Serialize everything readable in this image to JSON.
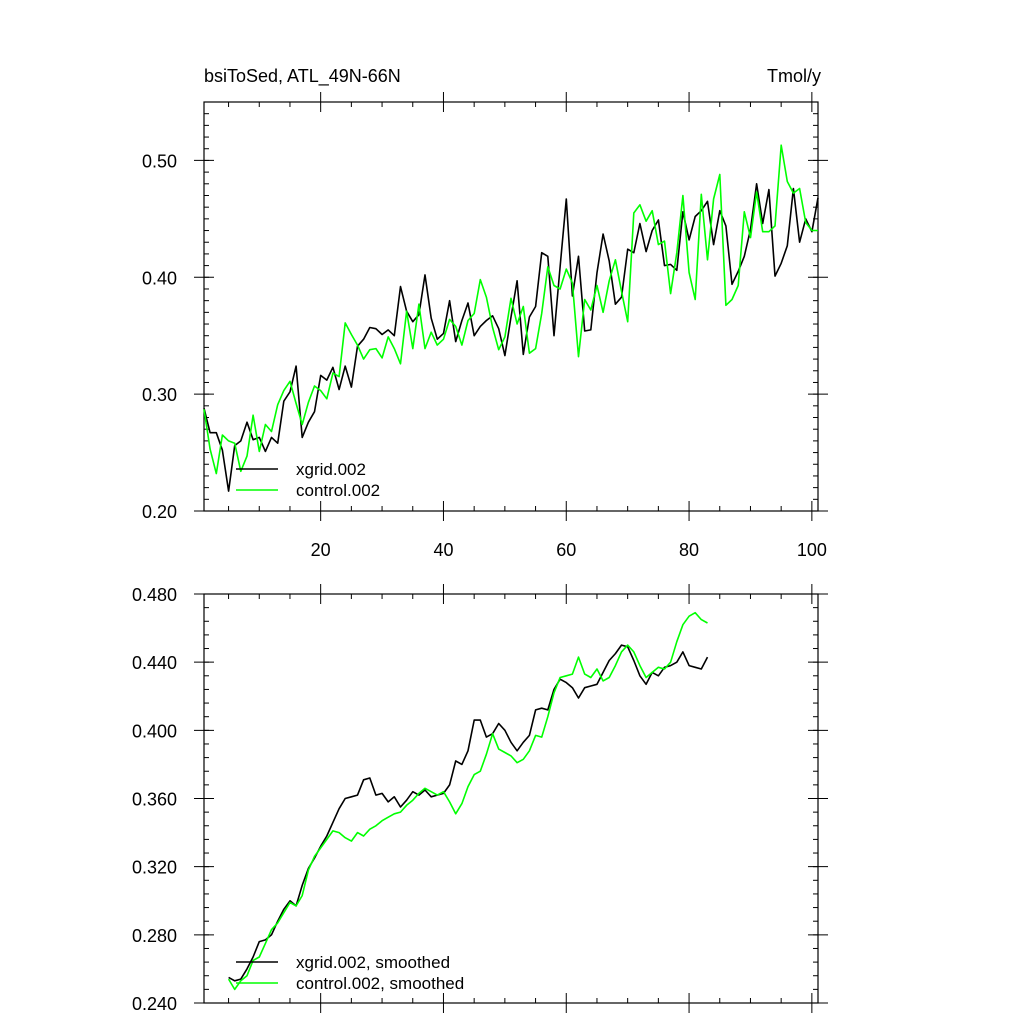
{
  "chart_data": [
    {
      "type": "line",
      "title_left": "bsiToSed, ATL_49N-66N",
      "title_right": "Tmol/y",
      "xlim": [
        1,
        101
      ],
      "ylim": [
        0.2,
        0.55
      ],
      "x_ticks": [
        20,
        40,
        60,
        80,
        100
      ],
      "y_ticks": [
        0.2,
        0.3,
        0.4,
        0.5
      ],
      "y_tick_labels": [
        "0.20",
        "0.30",
        "0.40",
        "0.50"
      ],
      "x_tick_labels": [
        "20",
        "40",
        "60",
        "80",
        "100"
      ],
      "legend": [
        "xgrid.002",
        "control.002"
      ],
      "series": [
        {
          "name": "xgrid.002",
          "color": "#000000",
          "x_start": 1,
          "values": [
            0.288,
            0.267,
            0.267,
            0.252,
            0.217,
            0.256,
            0.26,
            0.276,
            0.261,
            0.263,
            0.251,
            0.263,
            0.258,
            0.294,
            0.302,
            0.324,
            0.263,
            0.276,
            0.285,
            0.316,
            0.312,
            0.323,
            0.304,
            0.324,
            0.306,
            0.341,
            0.347,
            0.357,
            0.356,
            0.351,
            0.355,
            0.35,
            0.392,
            0.371,
            0.362,
            0.368,
            0.402,
            0.365,
            0.347,
            0.352,
            0.38,
            0.345,
            0.363,
            0.378,
            0.35,
            0.358,
            0.363,
            0.367,
            0.356,
            0.333,
            0.366,
            0.397,
            0.334,
            0.366,
            0.375,
            0.421,
            0.418,
            0.35,
            0.409,
            0.467,
            0.384,
            0.418,
            0.354,
            0.355,
            0.404,
            0.437,
            0.414,
            0.377,
            0.383,
            0.424,
            0.421,
            0.446,
            0.422,
            0.44,
            0.449,
            0.41,
            0.411,
            0.406,
            0.456,
            0.432,
            0.452,
            0.457,
            0.465,
            0.428,
            0.457,
            0.444,
            0.394,
            0.405,
            0.418,
            0.441,
            0.48,
            0.446,
            0.475,
            0.401,
            0.412,
            0.427,
            0.476,
            0.43,
            0.45,
            0.439,
            0.468
          ]
        },
        {
          "name": "control.002",
          "color": "#00ff00",
          "x_start": 1,
          "values": [
            0.287,
            0.253,
            0.232,
            0.265,
            0.26,
            0.258,
            0.234,
            0.247,
            0.282,
            0.251,
            0.274,
            0.268,
            0.291,
            0.303,
            0.311,
            0.292,
            0.274,
            0.293,
            0.307,
            0.303,
            0.296,
            0.318,
            0.315,
            0.361,
            0.351,
            0.342,
            0.33,
            0.338,
            0.339,
            0.331,
            0.349,
            0.339,
            0.326,
            0.371,
            0.339,
            0.377,
            0.339,
            0.353,
            0.342,
            0.347,
            0.364,
            0.358,
            0.342,
            0.363,
            0.369,
            0.398,
            0.383,
            0.357,
            0.338,
            0.349,
            0.382,
            0.36,
            0.375,
            0.335,
            0.339,
            0.369,
            0.409,
            0.393,
            0.39,
            0.407,
            0.395,
            0.332,
            0.381,
            0.372,
            0.393,
            0.37,
            0.397,
            0.415,
            0.388,
            0.362,
            0.455,
            0.462,
            0.448,
            0.457,
            0.428,
            0.431,
            0.386,
            0.421,
            0.47,
            0.404,
            0.381,
            0.471,
            0.415,
            0.467,
            0.488,
            0.376,
            0.381,
            0.393,
            0.456,
            0.434,
            0.473,
            0.439,
            0.439,
            0.444,
            0.513,
            0.482,
            0.472,
            0.476,
            0.447,
            0.44,
            0.44
          ]
        }
      ]
    },
    {
      "type": "line",
      "xlim": [
        1,
        101
      ],
      "ylim": [
        0.24,
        0.48
      ],
      "x_ticks": [
        20,
        40,
        60,
        80,
        100
      ],
      "y_ticks": [
        0.24,
        0.28,
        0.32,
        0.36,
        0.4,
        0.44,
        0.48
      ],
      "y_tick_labels": [
        "0.240",
        "0.280",
        "0.320",
        "0.360",
        "0.400",
        "0.440",
        "0.480"
      ],
      "legend": [
        "xgrid.002, smoothed",
        "control.002, smoothed"
      ],
      "series": [
        {
          "name": "xgrid.002, smoothed",
          "color": "#000000",
          "x_start": 5,
          "values": [
            0.255,
            0.253,
            0.254,
            0.26,
            0.267,
            0.276,
            0.277,
            0.28,
            0.288,
            0.295,
            0.3,
            0.297,
            0.309,
            0.319,
            0.325,
            0.332,
            0.338,
            0.346,
            0.354,
            0.36,
            0.361,
            0.362,
            0.371,
            0.372,
            0.362,
            0.363,
            0.358,
            0.361,
            0.355,
            0.359,
            0.364,
            0.362,
            0.365,
            0.361,
            0.362,
            0.363,
            0.368,
            0.382,
            0.38,
            0.388,
            0.406,
            0.406,
            0.396,
            0.398,
            0.404,
            0.4,
            0.393,
            0.388,
            0.393,
            0.397,
            0.412,
            0.413,
            0.412,
            0.424,
            0.43,
            0.428,
            0.425,
            0.419,
            0.425,
            0.426,
            0.427,
            0.434,
            0.441,
            0.445,
            0.45,
            0.449,
            0.441,
            0.432,
            0.427,
            0.434,
            0.432,
            0.437,
            0.438,
            0.44,
            0.446,
            0.438,
            0.437,
            0.436,
            0.443
          ]
        },
        {
          "name": "control.002, smoothed",
          "color": "#00ff00",
          "x_start": 5,
          "values": [
            0.254,
            0.248,
            0.253,
            0.256,
            0.265,
            0.267,
            0.275,
            0.283,
            0.287,
            0.293,
            0.299,
            0.297,
            0.303,
            0.318,
            0.326,
            0.331,
            0.336,
            0.341,
            0.34,
            0.337,
            0.335,
            0.34,
            0.338,
            0.342,
            0.344,
            0.347,
            0.349,
            0.351,
            0.352,
            0.356,
            0.359,
            0.363,
            0.366,
            0.364,
            0.362,
            0.364,
            0.358,
            0.351,
            0.357,
            0.367,
            0.374,
            0.376,
            0.386,
            0.398,
            0.389,
            0.387,
            0.385,
            0.381,
            0.383,
            0.388,
            0.397,
            0.396,
            0.408,
            0.422,
            0.431,
            0.432,
            0.433,
            0.443,
            0.433,
            0.431,
            0.436,
            0.429,
            0.431,
            0.438,
            0.446,
            0.45,
            0.446,
            0.438,
            0.431,
            0.434,
            0.437,
            0.436,
            0.44,
            0.452,
            0.462,
            0.467,
            0.469,
            0.465,
            0.463
          ]
        }
      ]
    }
  ]
}
